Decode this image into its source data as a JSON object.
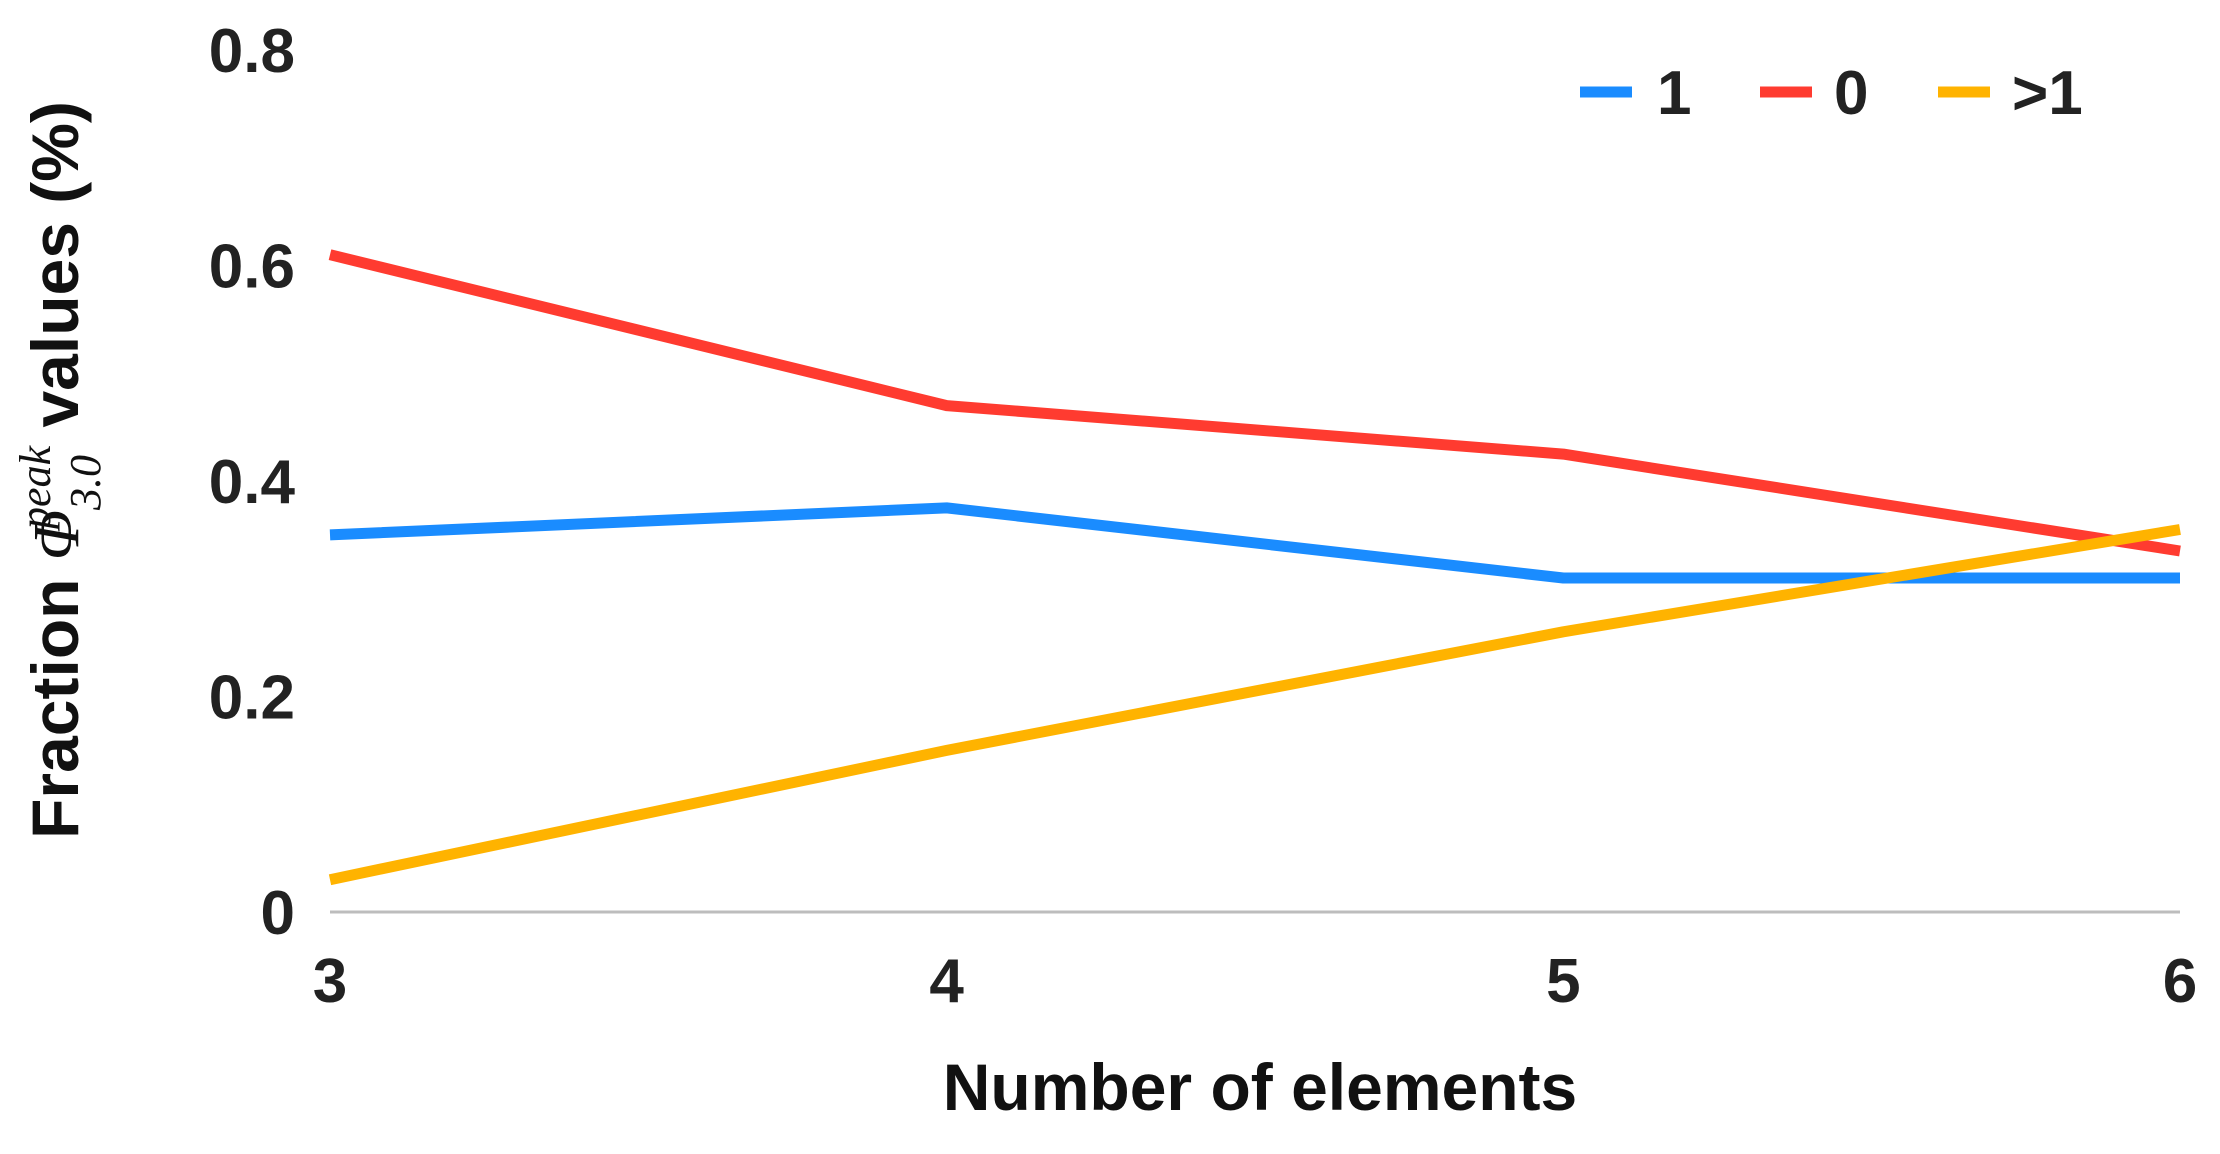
{
  "chart_data": {
    "type": "line",
    "title": "",
    "x": [
      3,
      4,
      5,
      6
    ],
    "x_tick_labels": [
      "3",
      "4",
      "5",
      "6"
    ],
    "xlabel": "Number of elements",
    "ylabel": {
      "prefix": "Fraction ",
      "symbol": "Φ",
      "subscript": "3.0",
      "superscript": "peak",
      "suffix": " values (%)"
    },
    "ylim": [
      0,
      0.8
    ],
    "y_ticks": [
      0,
      0.2,
      0.4,
      0.6,
      0.8
    ],
    "y_tick_labels": [
      "0",
      "0.2",
      "0.4",
      "0.6",
      "0.8"
    ],
    "grid": false,
    "legend_position": "top-right",
    "series": [
      {
        "name": "1",
        "color": "#1a8cff",
        "values": [
          0.35,
          0.375,
          0.31,
          0.31
        ]
      },
      {
        "name": "0",
        "color": "#ff3b30",
        "values": [
          0.61,
          0.47,
          0.425,
          0.335
        ]
      },
      {
        "name": ">1",
        "color": "#ffb300",
        "values": [
          0.03,
          0.15,
          0.26,
          0.355
        ]
      }
    ],
    "baseline_color": "#bdbdbd"
  }
}
